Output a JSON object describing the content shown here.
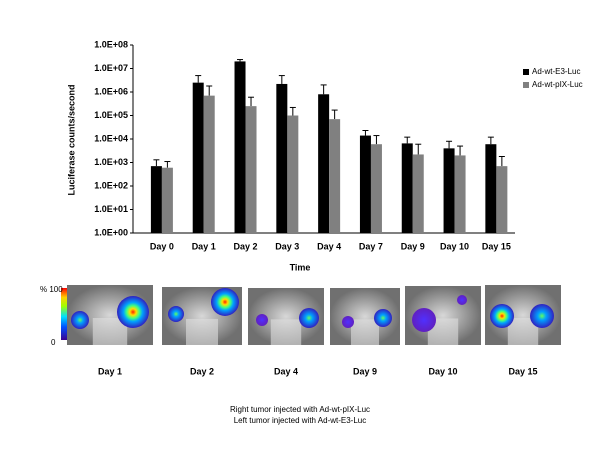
{
  "chart_data": {
    "type": "bar",
    "log_scale": true,
    "legend": "right",
    "y_label": "Luciferase counts/second",
    "x_label": "Time",
    "categories": [
      "Day 0",
      "Day 1",
      "Day  2",
      "Day 3",
      "Day 4",
      "Day 7",
      "Day 9",
      "Day 10",
      "Day 15"
    ],
    "series": [
      {
        "name": "Ad-wt-E3-Luc",
        "color": "#000000",
        "values": [
          700,
          2500000,
          20000000,
          2200000,
          800000,
          14000,
          6500,
          4000,
          6000
        ],
        "errors": [
          600,
          2500000,
          4000000,
          2800000,
          1200000,
          9000,
          5500,
          4000,
          6000
        ]
      },
      {
        "name": "Ad-wt-pIX-Luc",
        "color": "#808080",
        "values": [
          600,
          700000,
          250000,
          100000,
          70000,
          6000,
          2200,
          2000,
          700
        ],
        "errors": [
          500,
          1100000,
          350000,
          120000,
          100000,
          8000,
          3800,
          3000,
          1100
        ]
      }
    ],
    "ylim": [
      1,
      100000000
    ],
    "yticks": [
      {
        "value": 1,
        "label": "1.0E+00"
      },
      {
        "value": 10,
        "label": "1.0E+01"
      },
      {
        "value": 100,
        "label": "1.0E+02"
      },
      {
        "value": 1000,
        "label": "1.0E+03"
      },
      {
        "value": 10000,
        "label": "1.0E+04"
      },
      {
        "value": 100000,
        "label": "1.0E+05"
      },
      {
        "value": 1000000,
        "label": "1.0E+06"
      },
      {
        "value": 10000000,
        "label": "1.0E+07"
      },
      {
        "value": 100000000,
        "label": "1.0E+08"
      }
    ]
  },
  "panel": {
    "scale_top": "% 100",
    "scale_bottom": "0",
    "images": [
      {
        "label": "Day 1"
      },
      {
        "label": "Day 2"
      },
      {
        "label": "Day 4"
      },
      {
        "label": "Day  9"
      },
      {
        "label": "Day 10"
      },
      {
        "label": "Day 15"
      }
    ],
    "caption": [
      "Right tumor injected with Ad-wt-pIX-Luc",
      "Left tumor injected with Ad-wt-E3-Luc"
    ]
  }
}
